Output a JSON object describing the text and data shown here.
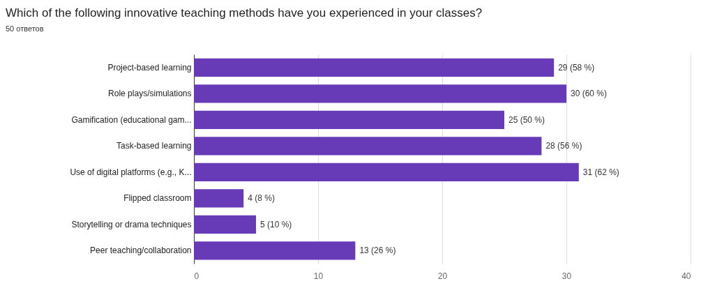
{
  "chart_data": {
    "type": "bar",
    "orientation": "horizontal",
    "title": "Which of the following innovative teaching methods have you experienced in your classes?",
    "subtitle": "50 ответов",
    "categories": [
      "Project-based learning",
      "Role plays/simulations",
      "Gamification (educational gam...",
      "Task-based learning",
      "Use of digital platforms (e.g., K...",
      "Flipped classroom",
      "Storytelling or drama techniques",
      "Peer teaching/collaboration"
    ],
    "values": [
      29,
      30,
      25,
      28,
      31,
      4,
      5,
      13
    ],
    "value_labels": [
      "29 (58 %)",
      "30 (60 %)",
      "25 (50 %)",
      "28 (56 %)",
      "31 (62 %)",
      "4 (8 %)",
      "5 (10 %)",
      "13 (26 %)"
    ],
    "color": "#673ab7",
    "xlim": [
      0,
      40
    ],
    "xticks": [
      0,
      10,
      20,
      30,
      40
    ],
    "grid": "x"
  }
}
